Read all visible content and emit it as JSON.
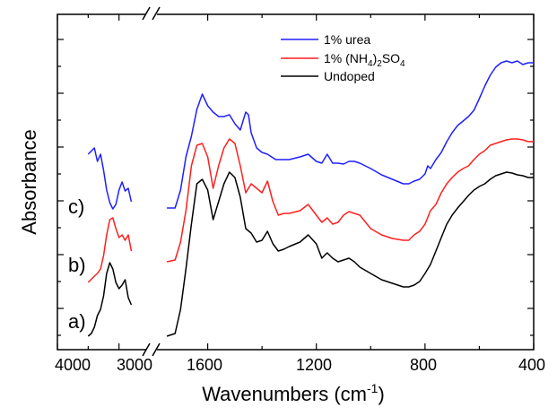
{
  "chart_data": {
    "type": "line",
    "title": "",
    "xlabel_main": "Wavenumbers (cm",
    "xlabel_sup": "-1",
    "xlabel_close": ")",
    "ylabel": "Absorbance",
    "x_axis": {
      "reversed": true,
      "broken": true,
      "left_segment_range": [
        4000,
        2500
      ],
      "right_segment_range": [
        1800,
        400
      ],
      "left_ticks": [
        "4000",
        "3000"
      ],
      "right_ticks": [
        "1600",
        "1200",
        "800",
        "400"
      ]
    },
    "y_axis": {
      "tick_labels": false
    },
    "legend": {
      "placement": "top-center",
      "entries": [
        {
          "label": "1% urea",
          "color": "#1f1fff"
        },
        {
          "label_parts": [
            "1% (NH",
            "4",
            ")",
            "2",
            "SO",
            "4"
          ],
          "color": "#ff1f1f"
        },
        {
          "label": "Undoped",
          "color": "#000000"
        }
      ]
    },
    "trace_labels": [
      "a)",
      "b)",
      "c)"
    ],
    "series": [
      {
        "name": "1% urea",
        "color": "#1f1fff",
        "left_points": [
          [
            3500,
            172
          ],
          [
            3400,
            165
          ],
          [
            3350,
            180
          ],
          [
            3300,
            172
          ],
          [
            3250,
            190
          ],
          [
            3200,
            212
          ],
          [
            3150,
            226
          ],
          [
            3100,
            233
          ],
          [
            3050,
            228
          ],
          [
            3000,
            212
          ],
          [
            2950,
            203
          ],
          [
            2900,
            213
          ],
          [
            2850,
            210
          ],
          [
            2800,
            225
          ]
        ],
        "right_points": [
          [
            1750,
            232
          ],
          [
            1720,
            232
          ],
          [
            1700,
            212
          ],
          [
            1680,
            175
          ],
          [
            1660,
            152
          ],
          [
            1640,
            122
          ],
          [
            1620,
            105
          ],
          [
            1600,
            118
          ],
          [
            1580,
            125
          ],
          [
            1560,
            130
          ],
          [
            1540,
            130
          ],
          [
            1520,
            128
          ],
          [
            1500,
            138
          ],
          [
            1480,
            145
          ],
          [
            1460,
            125
          ],
          [
            1450,
            128
          ],
          [
            1440,
            148
          ],
          [
            1420,
            165
          ],
          [
            1400,
            170
          ],
          [
            1380,
            172
          ],
          [
            1350,
            178
          ],
          [
            1300,
            178
          ],
          [
            1260,
            175
          ],
          [
            1230,
            172
          ],
          [
            1200,
            180
          ],
          [
            1180,
            182
          ],
          [
            1160,
            172
          ],
          [
            1140,
            182
          ],
          [
            1120,
            182
          ],
          [
            1100,
            183
          ],
          [
            1080,
            180
          ],
          [
            1060,
            180
          ],
          [
            1040,
            182
          ],
          [
            1000,
            188
          ],
          [
            960,
            195
          ],
          [
            920,
            200
          ],
          [
            880,
            205
          ],
          [
            860,
            205
          ],
          [
            840,
            202
          ],
          [
            820,
            200
          ],
          [
            800,
            194
          ],
          [
            790,
            185
          ],
          [
            780,
            188
          ],
          [
            760,
            178
          ],
          [
            740,
            170
          ],
          [
            720,
            158
          ],
          [
            700,
            148
          ],
          [
            680,
            140
          ],
          [
            660,
            135
          ],
          [
            640,
            130
          ],
          [
            620,
            123
          ],
          [
            600,
            110
          ],
          [
            580,
            96
          ],
          [
            560,
            84
          ],
          [
            540,
            75
          ],
          [
            520,
            70
          ],
          [
            500,
            68
          ],
          [
            480,
            70
          ],
          [
            460,
            68
          ],
          [
            440,
            72
          ],
          [
            420,
            70
          ],
          [
            400,
            70
          ]
        ]
      },
      {
        "name": "1% (NH4)2SO4",
        "color": "#ff1f1f",
        "left_points": [
          [
            3500,
            315
          ],
          [
            3400,
            308
          ],
          [
            3350,
            305
          ],
          [
            3300,
            300
          ],
          [
            3250,
            285
          ],
          [
            3200,
            262
          ],
          [
            3150,
            245
          ],
          [
            3100,
            243
          ],
          [
            3050,
            255
          ],
          [
            3000,
            265
          ],
          [
            2950,
            262
          ],
          [
            2900,
            268
          ],
          [
            2850,
            262
          ],
          [
            2800,
            280
          ]
        ],
        "right_points": [
          [
            1750,
            292
          ],
          [
            1720,
            290
          ],
          [
            1700,
            270
          ],
          [
            1680,
            235
          ],
          [
            1660,
            185
          ],
          [
            1640,
            162
          ],
          [
            1620,
            160
          ],
          [
            1600,
            175
          ],
          [
            1580,
            210
          ],
          [
            1560,
            185
          ],
          [
            1540,
            165
          ],
          [
            1520,
            155
          ],
          [
            1500,
            160
          ],
          [
            1480,
            185
          ],
          [
            1460,
            215
          ],
          [
            1440,
            205
          ],
          [
            1420,
            210
          ],
          [
            1400,
            215
          ],
          [
            1380,
            202
          ],
          [
            1360,
            225
          ],
          [
            1340,
            240
          ],
          [
            1320,
            238
          ],
          [
            1300,
            238
          ],
          [
            1260,
            235
          ],
          [
            1230,
            228
          ],
          [
            1200,
            240
          ],
          [
            1180,
            248
          ],
          [
            1160,
            243
          ],
          [
            1140,
            250
          ],
          [
            1120,
            248
          ],
          [
            1100,
            240
          ],
          [
            1080,
            236
          ],
          [
            1060,
            238
          ],
          [
            1040,
            240
          ],
          [
            1000,
            255
          ],
          [
            960,
            262
          ],
          [
            920,
            266
          ],
          [
            880,
            268
          ],
          [
            860,
            268
          ],
          [
            840,
            262
          ],
          [
            820,
            258
          ],
          [
            800,
            250
          ],
          [
            780,
            235
          ],
          [
            760,
            228
          ],
          [
            740,
            215
          ],
          [
            720,
            205
          ],
          [
            700,
            198
          ],
          [
            680,
            192
          ],
          [
            660,
            188
          ],
          [
            640,
            185
          ],
          [
            620,
            178
          ],
          [
            600,
            172
          ],
          [
            580,
            168
          ],
          [
            560,
            162
          ],
          [
            540,
            160
          ],
          [
            520,
            158
          ],
          [
            500,
            156
          ],
          [
            480,
            155
          ],
          [
            460,
            155
          ],
          [
            440,
            156
          ],
          [
            420,
            158
          ],
          [
            400,
            158
          ]
        ]
      },
      {
        "name": "Undoped",
        "color": "#000000",
        "left_points": [
          [
            3500,
            375
          ],
          [
            3450,
            372
          ],
          [
            3400,
            365
          ],
          [
            3350,
            352
          ],
          [
            3300,
            345
          ],
          [
            3250,
            330
          ],
          [
            3200,
            305
          ],
          [
            3150,
            293
          ],
          [
            3100,
            300
          ],
          [
            3050,
            315
          ],
          [
            3000,
            322
          ],
          [
            2950,
            318
          ],
          [
            2900,
            312
          ],
          [
            2850,
            332
          ],
          [
            2800,
            340
          ]
        ],
        "right_points": [
          [
            1750,
            375
          ],
          [
            1720,
            372
          ],
          [
            1700,
            345
          ],
          [
            1680,
            300
          ],
          [
            1660,
            250
          ],
          [
            1640,
            205
          ],
          [
            1620,
            200
          ],
          [
            1600,
            212
          ],
          [
            1580,
            245
          ],
          [
            1560,
            225
          ],
          [
            1540,
            205
          ],
          [
            1520,
            192
          ],
          [
            1500,
            198
          ],
          [
            1480,
            220
          ],
          [
            1460,
            255
          ],
          [
            1440,
            260
          ],
          [
            1420,
            270
          ],
          [
            1400,
            268
          ],
          [
            1380,
            258
          ],
          [
            1360,
            272
          ],
          [
            1340,
            280
          ],
          [
            1320,
            278
          ],
          [
            1300,
            275
          ],
          [
            1260,
            270
          ],
          [
            1230,
            262
          ],
          [
            1200,
            272
          ],
          [
            1180,
            288
          ],
          [
            1160,
            282
          ],
          [
            1140,
            288
          ],
          [
            1120,
            292
          ],
          [
            1100,
            290
          ],
          [
            1080,
            288
          ],
          [
            1060,
            292
          ],
          [
            1040,
            298
          ],
          [
            1000,
            305
          ],
          [
            960,
            312
          ],
          [
            920,
            316
          ],
          [
            880,
            320
          ],
          [
            860,
            320
          ],
          [
            840,
            318
          ],
          [
            820,
            314
          ],
          [
            800,
            305
          ],
          [
            780,
            295
          ],
          [
            760,
            280
          ],
          [
            740,
            265
          ],
          [
            720,
            250
          ],
          [
            700,
            240
          ],
          [
            680,
            232
          ],
          [
            660,
            225
          ],
          [
            640,
            218
          ],
          [
            620,
            212
          ],
          [
            600,
            208
          ],
          [
            580,
            205
          ],
          [
            560,
            200
          ],
          [
            540,
            196
          ],
          [
            520,
            194
          ],
          [
            500,
            192
          ],
          [
            480,
            193
          ],
          [
            460,
            195
          ],
          [
            440,
            196
          ],
          [
            420,
            198
          ],
          [
            400,
            198
          ]
        ]
      }
    ]
  }
}
